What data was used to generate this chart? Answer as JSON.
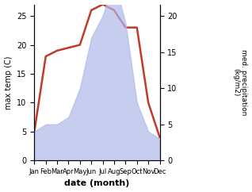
{
  "months": [
    "Jan",
    "Feb",
    "Mar",
    "Apr",
    "May",
    "Jun",
    "Jul",
    "Aug",
    "Sep",
    "Oct",
    "Nov",
    "Dec"
  ],
  "month_x": [
    1,
    2,
    3,
    4,
    5,
    6,
    7,
    8,
    9,
    10,
    11,
    12
  ],
  "temp": [
    5,
    18,
    19,
    19.5,
    20,
    26,
    27,
    26,
    23,
    23,
    10,
    4
  ],
  "precip": [
    4,
    5,
    5,
    6,
    10,
    17,
    20,
    25,
    19,
    8,
    4,
    3
  ],
  "temp_color": "#c0392b",
  "precip_color": "#b0b8e8",
  "ylabel_left": "max temp (C)",
  "ylabel_right": "med. precipitation\n(kg/m2)",
  "xlabel": "date (month)",
  "ylim_left": [
    0,
    27
  ],
  "ylim_right": [
    0,
    21.6
  ],
  "yticks_left": [
    0,
    5,
    10,
    15,
    20,
    25
  ],
  "yticks_right": [
    0,
    5,
    10,
    15,
    20
  ],
  "background_color": "#ffffff",
  "line_width": 1.8,
  "precip_scale": 1.08
}
